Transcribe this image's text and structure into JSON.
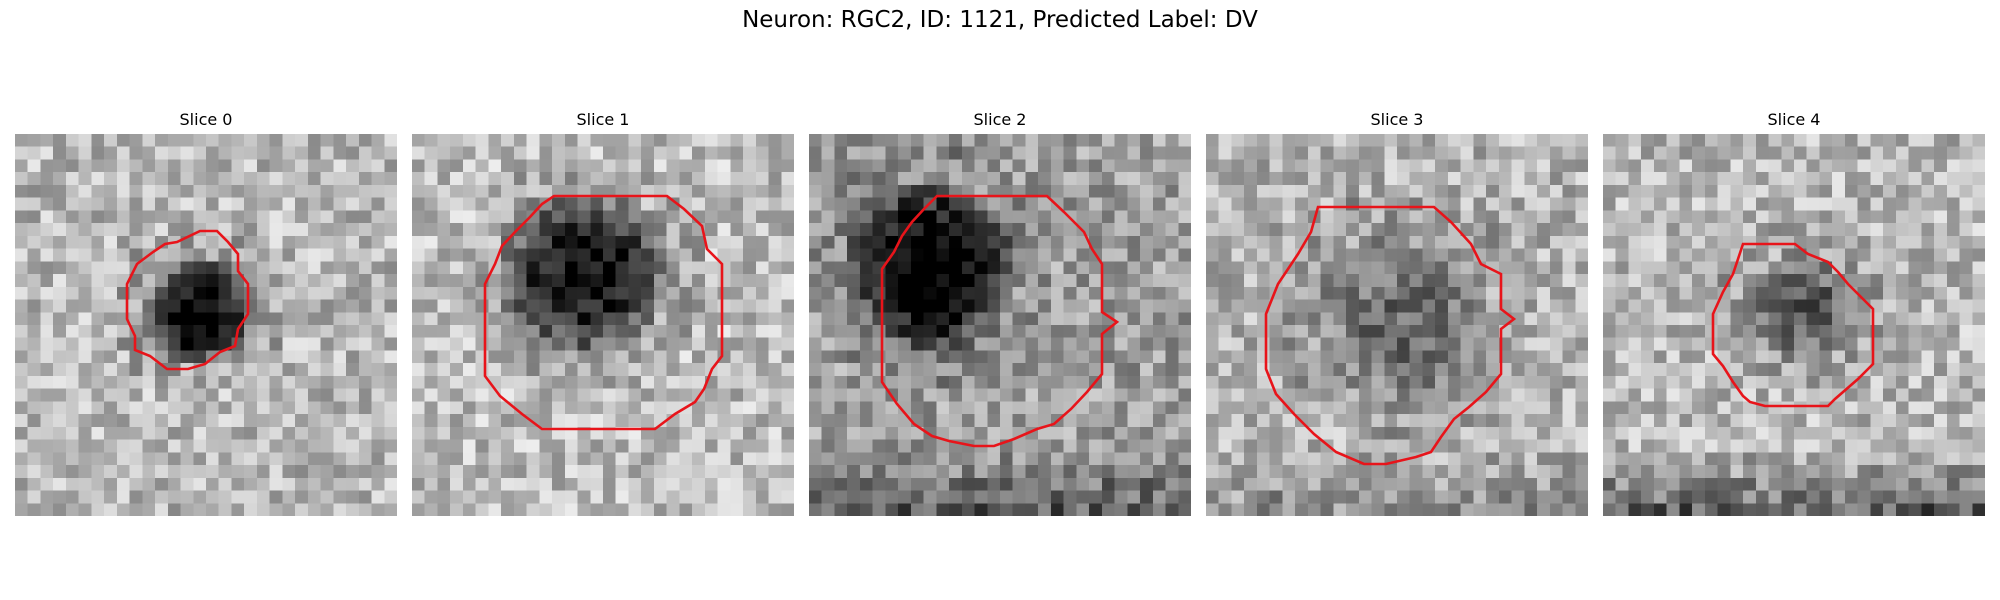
{
  "figure": {
    "suptitle": "Neuron: RGC2, ID: 1121, Predicted Label: DV"
  },
  "colors": {
    "contour": "#e8141a",
    "colormap": "gray"
  },
  "slices": [
    {
      "title": "Slice 0"
    },
    {
      "title": "Slice 1"
    },
    {
      "title": "Slice 2"
    },
    {
      "title": "Slice 3"
    },
    {
      "title": "Slice 4"
    }
  ]
}
